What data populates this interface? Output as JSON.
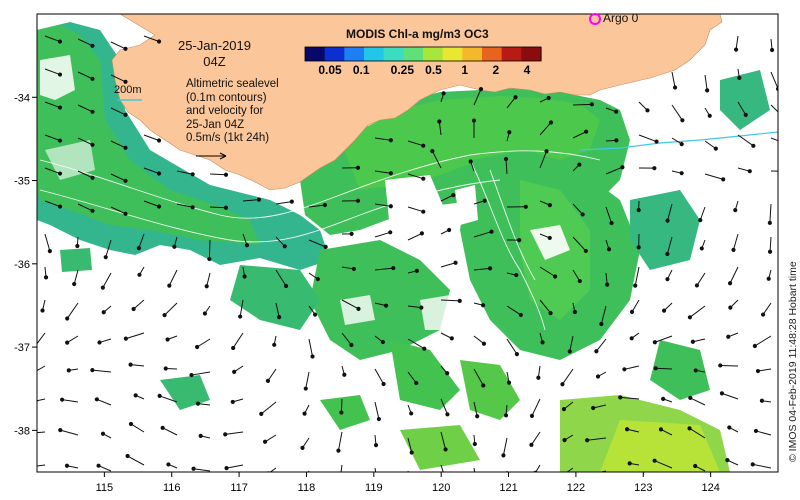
{
  "title": {
    "date": "25-Jan-2019",
    "time": "04Z"
  },
  "description_lines": [
    "Altimetric sealevel",
    "(0.1m contours)",
    "and velocity for",
    "25-Jan 04Z",
    "0.5m/s (1kt 24h)"
  ],
  "colorbar": {
    "title": "MODIS Chl-a mg/m3 OC3",
    "ticks": [
      "0.05",
      "0.1",
      "0.25",
      "0.5",
      "1",
      "2",
      "4"
    ],
    "colors": [
      "#08086b",
      "#0b2fd0",
      "#1e7ff5",
      "#22c6e8",
      "#3bdcbf",
      "#5fe07a",
      "#a8e63a",
      "#e8e832",
      "#f5b82a",
      "#e8641e",
      "#b81a14",
      "#8a0c0c"
    ]
  },
  "isobath_label": "200m",
  "argo_label": "Argo 0",
  "credit": "© IMOS 04-Feb-2019 11:48:28 Hobart time",
  "axes": {
    "x_ticks": [
      "115",
      "116",
      "117",
      "118",
      "119",
      "120",
      "121",
      "122",
      "123",
      "124"
    ],
    "y_ticks": [
      "-34",
      "-35",
      "-36",
      "-37",
      "-38"
    ],
    "lon_range": [
      114.0,
      125.0
    ],
    "lat_range": [
      -38.5,
      -33.0
    ]
  },
  "colors": {
    "land": "#fbc79a",
    "ocean_bg": "#ffffff",
    "chl_teal": "#2fb89a",
    "chl_green": "#3fbf5a",
    "chl_bright": "#55d046",
    "chl_yellow": "#b7e339",
    "argo": "#ff00ff",
    "isobath": "#40c8e8"
  }
}
